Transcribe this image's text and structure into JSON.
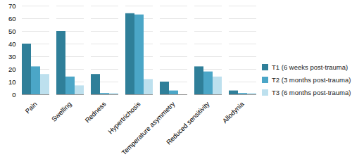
{
  "chart_data": {
    "type": "bar",
    "categories": [
      "Pain",
      "Swelling",
      "Redness",
      "Hypertrichosis",
      "Temperature asymmetry",
      "Reduced sensitivity",
      "Allodynia"
    ],
    "series": [
      {
        "name": "T1 (6 weeks post-trauma)",
        "color": "#2f7f99",
        "values": [
          40,
          50,
          16,
          64,
          10,
          22,
          3
        ]
      },
      {
        "name": "T2 (3 months post-trauma)",
        "color": "#4ba6c7",
        "values": [
          22,
          14,
          1,
          63,
          3,
          18,
          1
        ]
      },
      {
        "name": "T3 (6 months post-trauma)",
        "color": "#bde0ee",
        "values": [
          16,
          7,
          1,
          12,
          0,
          14,
          1
        ]
      }
    ],
    "ylim": [
      0,
      70
    ],
    "yticks": [
      0,
      10,
      20,
      30,
      40,
      50,
      60,
      70
    ],
    "grid": true,
    "legend": "right"
  }
}
